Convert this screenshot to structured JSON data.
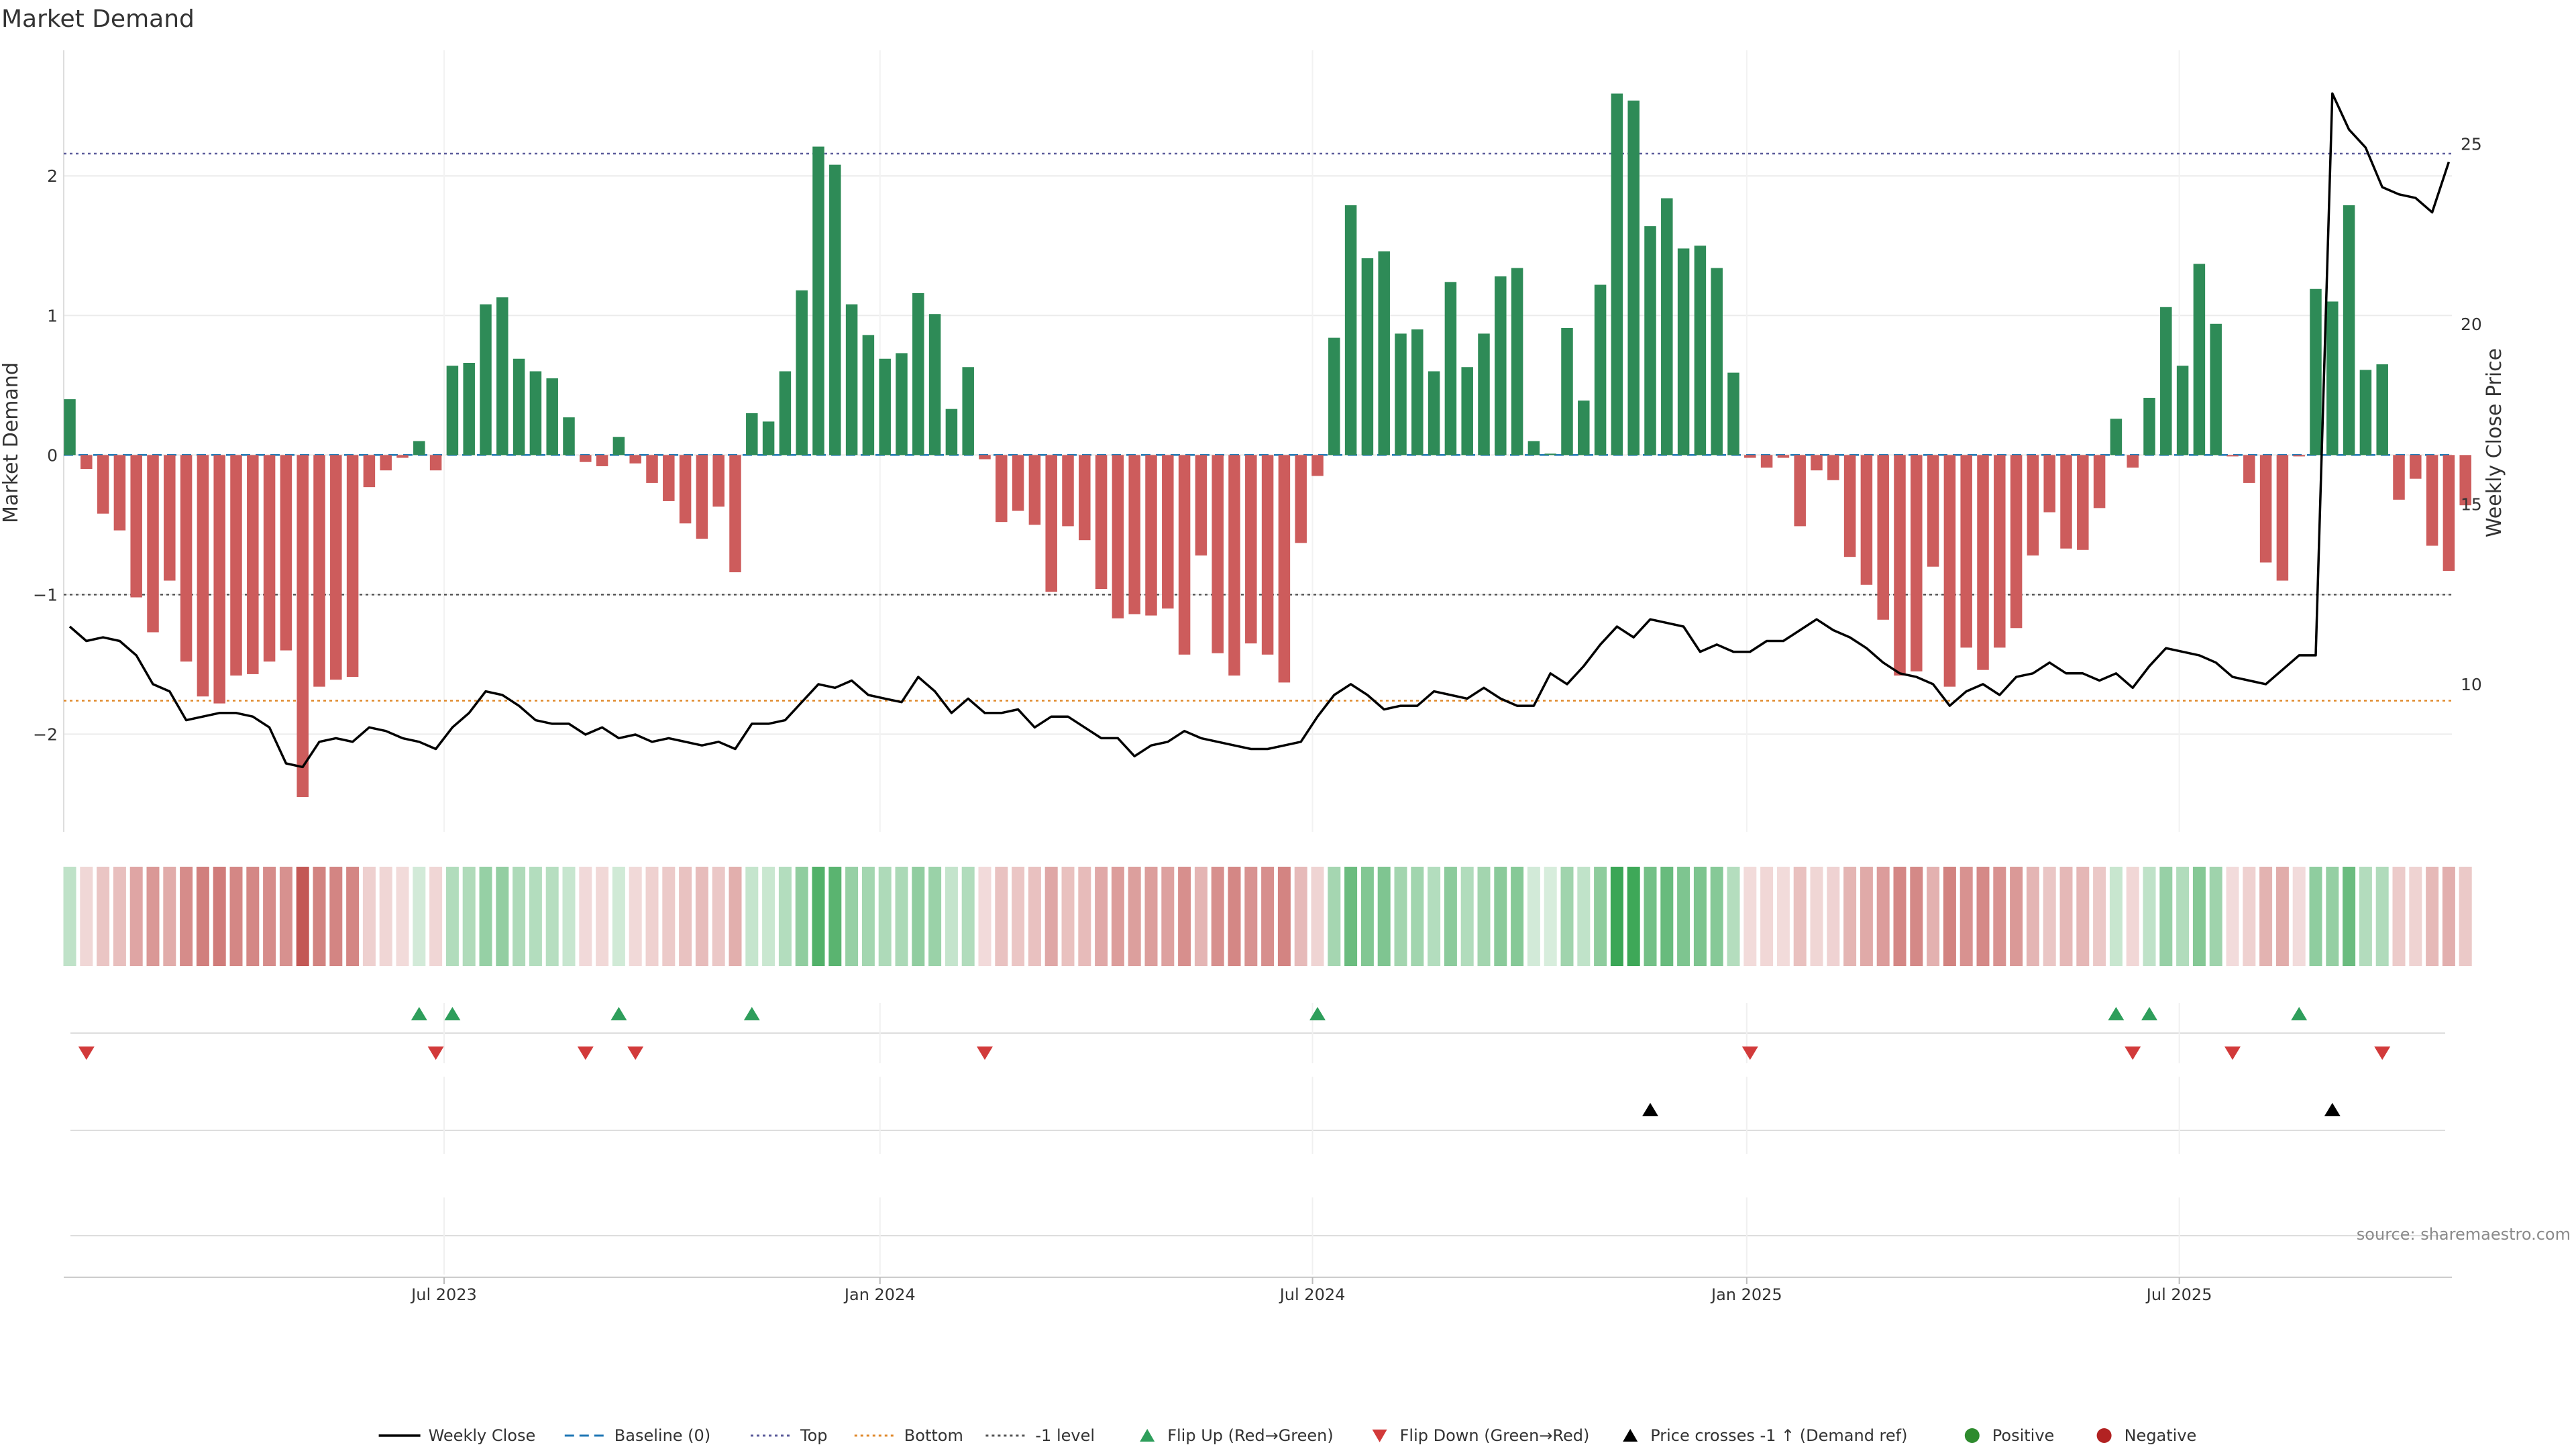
{
  "chart_data": {
    "type": "bar",
    "title": "Market Demand",
    "ylabel_left": "Market Demand",
    "ylabel_right": "Weekly Close Price",
    "ylim_left": [
      -2.7,
      2.9
    ],
    "ylim_right": [
      5.9,
      27.6
    ],
    "yticks_left": [
      "2",
      "1",
      "0",
      "−1",
      "−2"
    ],
    "yticks_left_values": [
      2,
      1,
      0,
      -1,
      -2
    ],
    "yticks_right": [
      "25",
      "20",
      "15",
      "10"
    ],
    "yticks_right_values": [
      25,
      20,
      15,
      10
    ],
    "x_tick_labels": [
      "Jul 2023",
      "Jan 2024",
      "Jul 2024",
      "Jan 2025",
      "Jul 2025"
    ],
    "x_tick_index": [
      22.5,
      48.7,
      74.7,
      100.8,
      126.8
    ],
    "reference_lines": {
      "top": 2.16,
      "bottom": -1.76,
      "minus_one": -1.0,
      "baseline": 0
    },
    "demand": [
      0.4,
      -0.1,
      -0.42,
      -0.54,
      -1.02,
      -1.27,
      -0.9,
      -1.48,
      -1.73,
      -1.78,
      -1.58,
      -1.57,
      -1.48,
      -1.4,
      -2.45,
      -1.66,
      -1.61,
      -1.59,
      -0.23,
      -0.11,
      -0.02,
      0.1,
      -0.11,
      0.64,
      0.66,
      1.08,
      1.13,
      0.69,
      0.6,
      0.55,
      0.27,
      -0.05,
      -0.08,
      0.13,
      -0.06,
      -0.2,
      -0.33,
      -0.49,
      -0.6,
      -0.37,
      -0.84,
      0.3,
      0.24,
      0.6,
      1.18,
      2.21,
      2.08,
      1.08,
      0.86,
      0.69,
      0.73,
      1.16,
      1.01,
      0.33,
      0.63,
      -0.03,
      -0.48,
      -0.4,
      -0.5,
      -0.98,
      -0.51,
      -0.61,
      -0.96,
      -1.17,
      -1.14,
      -1.15,
      -1.1,
      -1.43,
      -0.72,
      -1.42,
      -1.58,
      -1.35,
      -1.43,
      -1.63,
      -0.63,
      -0.15,
      0.84,
      1.79,
      1.41,
      1.46,
      0.87,
      0.9,
      0.6,
      1.24,
      0.63,
      0.87,
      1.28,
      1.34,
      0.1,
      0.01,
      0.91,
      0.39,
      1.22,
      2.59,
      2.54,
      1.64,
      1.84,
      1.48,
      1.5,
      1.34,
      0.59,
      -0.02,
      -0.09,
      -0.02,
      -0.51,
      -0.11,
      -0.18,
      -0.73,
      -0.93,
      -1.18,
      -1.58,
      -1.55,
      -0.8,
      -1.66,
      -1.38,
      -1.54,
      -1.38,
      -1.24,
      -0.72,
      -0.41,
      -0.67,
      -0.68,
      -0.38,
      0.26,
      -0.09,
      0.41,
      1.06,
      0.64,
      1.37,
      0.94,
      -0.01,
      -0.2,
      -0.77,
      -0.9,
      -0.01,
      1.19,
      1.1,
      1.79,
      0.61,
      0.65,
      -0.32,
      -0.17,
      -0.65,
      -0.83,
      -0.36
    ],
    "weekly_close": [
      11.6,
      11.2,
      11.3,
      11.2,
      10.8,
      10.0,
      9.8,
      9.0,
      9.1,
      9.2,
      9.2,
      9.1,
      8.8,
      7.8,
      7.7,
      8.4,
      8.5,
      8.4,
      8.8,
      8.7,
      8.5,
      8.4,
      8.2,
      8.8,
      9.2,
      9.8,
      9.7,
      9.4,
      9.0,
      8.9,
      8.9,
      8.6,
      8.8,
      8.5,
      8.6,
      8.4,
      8.5,
      8.4,
      8.3,
      8.4,
      8.2,
      8.9,
      8.9,
      9.0,
      9.5,
      10.0,
      9.9,
      10.1,
      9.7,
      9.6,
      9.5,
      10.2,
      9.8,
      9.2,
      9.6,
      9.2,
      9.2,
      9.3,
      8.8,
      9.1,
      9.1,
      8.8,
      8.5,
      8.5,
      8.0,
      8.3,
      8.4,
      8.7,
      8.5,
      8.4,
      8.3,
      8.2,
      8.2,
      8.3,
      8.4,
      9.1,
      9.7,
      10.0,
      9.7,
      9.3,
      9.4,
      9.4,
      9.8,
      9.7,
      9.6,
      9.9,
      9.6,
      9.4,
      9.4,
      10.3,
      10.0,
      10.5,
      11.1,
      11.6,
      11.3,
      11.8,
      11.7,
      11.6,
      10.9,
      11.1,
      10.9,
      10.9,
      11.2,
      11.2,
      11.5,
      11.8,
      11.5,
      11.3,
      11.0,
      10.6,
      10.3,
      10.2,
      10.0,
      9.4,
      9.8,
      10.0,
      9.7,
      10.2,
      10.3,
      10.6,
      10.3,
      10.3,
      10.1,
      10.3,
      9.9,
      10.5,
      11.0,
      10.9,
      10.8,
      10.6,
      10.2,
      10.1,
      10.0,
      10.4,
      10.8,
      10.8,
      26.4,
      25.4,
      24.9,
      23.8,
      23.6,
      23.5,
      23.1,
      24.5
    ],
    "flip_up_index": [
      21,
      23,
      33,
      41,
      75,
      123,
      125,
      134
    ],
    "flip_down_index": [
      1,
      22,
      31,
      34,
      55,
      101,
      124,
      130,
      139
    ],
    "price_cross_index": [
      95,
      136
    ],
    "legend": [
      {
        "label": "Weekly Close",
        "symbol": "line-solid",
        "color": "#000000"
      },
      {
        "label": "Baseline (0)",
        "symbol": "line-dashed",
        "color": "#1f77b4"
      },
      {
        "label": "Top",
        "symbol": "line-dotted",
        "color": "#5b5b9a"
      },
      {
        "label": "Bottom",
        "symbol": "line-dotted",
        "color": "#e08a2c"
      },
      {
        "label": "-1 level",
        "symbol": "line-dotted",
        "color": "#555555"
      },
      {
        "label": "Flip Up (Red→Green)",
        "symbol": "triangle-up",
        "color": "#2e9e5b"
      },
      {
        "label": "Flip Down (Green→Red)",
        "symbol": "triangle-down",
        "color": "#d23a3a"
      },
      {
        "label": "Price crosses -1 ↑ (Demand ref)",
        "symbol": "triangle-up",
        "color": "#000000"
      },
      {
        "label": "Positive",
        "symbol": "dot",
        "color": "#2e8b2e"
      },
      {
        "label": "Negative",
        "symbol": "dot",
        "color": "#b22222"
      }
    ],
    "colors": {
      "positive_bar": "#2e8b57",
      "negative_bar": "#cd5c5c",
      "heat_positive": "#3aa655",
      "heat_negative": "#c0504d",
      "price_line": "#000000"
    },
    "source": "source: sharemaestro.com"
  }
}
